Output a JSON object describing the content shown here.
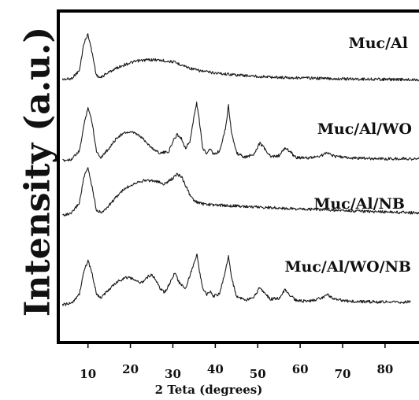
{
  "chart_data": {
    "type": "line",
    "xlabel": "2 Teta (degrees)",
    "ylabel": "Intensity (a.u.)",
    "xlim": [
      3,
      88
    ],
    "x_ticks": [
      10,
      20,
      30,
      40,
      50,
      60,
      70,
      80
    ],
    "grid": false,
    "legend": "none",
    "y_unit": "a.u. (stacked, offset per series)",
    "series": [
      {
        "name": "Muc/Al",
        "points": [
          [
            4,
            0.02
          ],
          [
            6,
            0.03
          ],
          [
            8,
            0.2
          ],
          [
            9,
            0.75
          ],
          [
            10,
            0.95
          ],
          [
            11,
            0.55
          ],
          [
            12,
            0.1
          ],
          [
            13,
            0.05
          ],
          [
            14,
            0.12
          ],
          [
            16,
            0.22
          ],
          [
            18,
            0.3
          ],
          [
            20,
            0.36
          ],
          [
            22,
            0.4
          ],
          [
            24,
            0.42
          ],
          [
            26,
            0.42
          ],
          [
            28,
            0.4
          ],
          [
            30,
            0.38
          ],
          [
            32,
            0.32
          ],
          [
            34,
            0.25
          ],
          [
            36,
            0.2
          ],
          [
            40,
            0.15
          ],
          [
            45,
            0.11
          ],
          [
            50,
            0.08
          ],
          [
            55,
            0.06
          ],
          [
            60,
            0.05
          ],
          [
            70,
            0.03
          ],
          [
            80,
            0.02
          ],
          [
            88,
            0.01
          ]
        ]
      },
      {
        "name": "Muc/Al/WO",
        "points": [
          [
            4,
            0.0
          ],
          [
            6,
            0.02
          ],
          [
            8,
            0.15
          ],
          [
            9,
            0.55
          ],
          [
            10,
            0.85
          ],
          [
            11,
            0.6
          ],
          [
            12,
            0.15
          ],
          [
            13,
            0.05
          ],
          [
            15,
            0.2
          ],
          [
            17,
            0.38
          ],
          [
            19,
            0.45
          ],
          [
            21,
            0.44
          ],
          [
            23,
            0.35
          ],
          [
            25,
            0.2
          ],
          [
            27,
            0.12
          ],
          [
            29,
            0.14
          ],
          [
            30,
            0.3
          ],
          [
            31,
            0.42
          ],
          [
            32,
            0.35
          ],
          [
            33,
            0.2
          ],
          [
            34,
            0.3
          ],
          [
            35,
            0.7
          ],
          [
            35.6,
            0.92
          ],
          [
            36.3,
            0.6
          ],
          [
            37,
            0.2
          ],
          [
            38,
            0.12
          ],
          [
            38.8,
            0.2
          ],
          [
            39.5,
            0.1
          ],
          [
            41,
            0.15
          ],
          [
            42.5,
            0.55
          ],
          [
            43.1,
            0.88
          ],
          [
            43.8,
            0.45
          ],
          [
            45,
            0.12
          ],
          [
            47,
            0.05
          ],
          [
            49,
            0.1
          ],
          [
            50.5,
            0.28
          ],
          [
            51.5,
            0.2
          ],
          [
            53,
            0.06
          ],
          [
            55,
            0.08
          ],
          [
            56.5,
            0.2
          ],
          [
            57.5,
            0.15
          ],
          [
            59,
            0.05
          ],
          [
            62,
            0.04
          ],
          [
            65,
            0.08
          ],
          [
            66.5,
            0.13
          ],
          [
            68,
            0.07
          ],
          [
            72,
            0.04
          ],
          [
            80,
            0.03
          ],
          [
            88,
            0.03
          ]
        ]
      },
      {
        "name": "Muc/Al/NB",
        "points": [
          [
            4,
            0.0
          ],
          [
            6,
            0.02
          ],
          [
            8,
            0.25
          ],
          [
            9,
            0.75
          ],
          [
            10,
            0.95
          ],
          [
            11,
            0.55
          ],
          [
            12,
            0.1
          ],
          [
            13,
            0.05
          ],
          [
            14,
            0.1
          ],
          [
            16,
            0.3
          ],
          [
            18,
            0.48
          ],
          [
            20,
            0.6
          ],
          [
            22,
            0.68
          ],
          [
            24,
            0.7
          ],
          [
            26,
            0.68
          ],
          [
            28,
            0.62
          ],
          [
            30,
            0.74
          ],
          [
            31,
            0.82
          ],
          [
            32,
            0.78
          ],
          [
            33,
            0.6
          ],
          [
            34,
            0.4
          ],
          [
            35,
            0.28
          ],
          [
            37,
            0.22
          ],
          [
            40,
            0.2
          ],
          [
            45,
            0.18
          ],
          [
            50,
            0.16
          ],
          [
            55,
            0.14
          ],
          [
            60,
            0.12
          ],
          [
            70,
            0.09
          ],
          [
            80,
            0.06
          ],
          [
            88,
            0.04
          ]
        ]
      },
      {
        "name": "Muc/Al/WO/NB",
        "points": [
          [
            4,
            0.0
          ],
          [
            6,
            0.02
          ],
          [
            8,
            0.2
          ],
          [
            9,
            0.6
          ],
          [
            10,
            0.8
          ],
          [
            11,
            0.55
          ],
          [
            12,
            0.2
          ],
          [
            13,
            0.12
          ],
          [
            15,
            0.28
          ],
          [
            17,
            0.42
          ],
          [
            19,
            0.5
          ],
          [
            21,
            0.46
          ],
          [
            22,
            0.4
          ],
          [
            23,
            0.42
          ],
          [
            24,
            0.5
          ],
          [
            25,
            0.55
          ],
          [
            26,
            0.45
          ],
          [
            27,
            0.3
          ],
          [
            28,
            0.22
          ],
          [
            29,
            0.35
          ],
          [
            30.5,
            0.58
          ],
          [
            31.5,
            0.4
          ],
          [
            33,
            0.3
          ],
          [
            35,
            0.75
          ],
          [
            35.7,
            0.92
          ],
          [
            36.4,
            0.55
          ],
          [
            37,
            0.3
          ],
          [
            38,
            0.18
          ],
          [
            38.8,
            0.25
          ],
          [
            39.5,
            0.15
          ],
          [
            41,
            0.2
          ],
          [
            42.5,
            0.65
          ],
          [
            43.1,
            0.9
          ],
          [
            43.8,
            0.5
          ],
          [
            45,
            0.15
          ],
          [
            47,
            0.08
          ],
          [
            49,
            0.12
          ],
          [
            50.5,
            0.32
          ],
          [
            51.5,
            0.22
          ],
          [
            53,
            0.1
          ],
          [
            55,
            0.12
          ],
          [
            56.5,
            0.28
          ],
          [
            57.5,
            0.18
          ],
          [
            59,
            0.08
          ],
          [
            62,
            0.06
          ],
          [
            65,
            0.12
          ],
          [
            66.5,
            0.18
          ],
          [
            68,
            0.1
          ],
          [
            72,
            0.06
          ],
          [
            80,
            0.05
          ],
          [
            86,
            0.05
          ]
        ]
      }
    ]
  }
}
